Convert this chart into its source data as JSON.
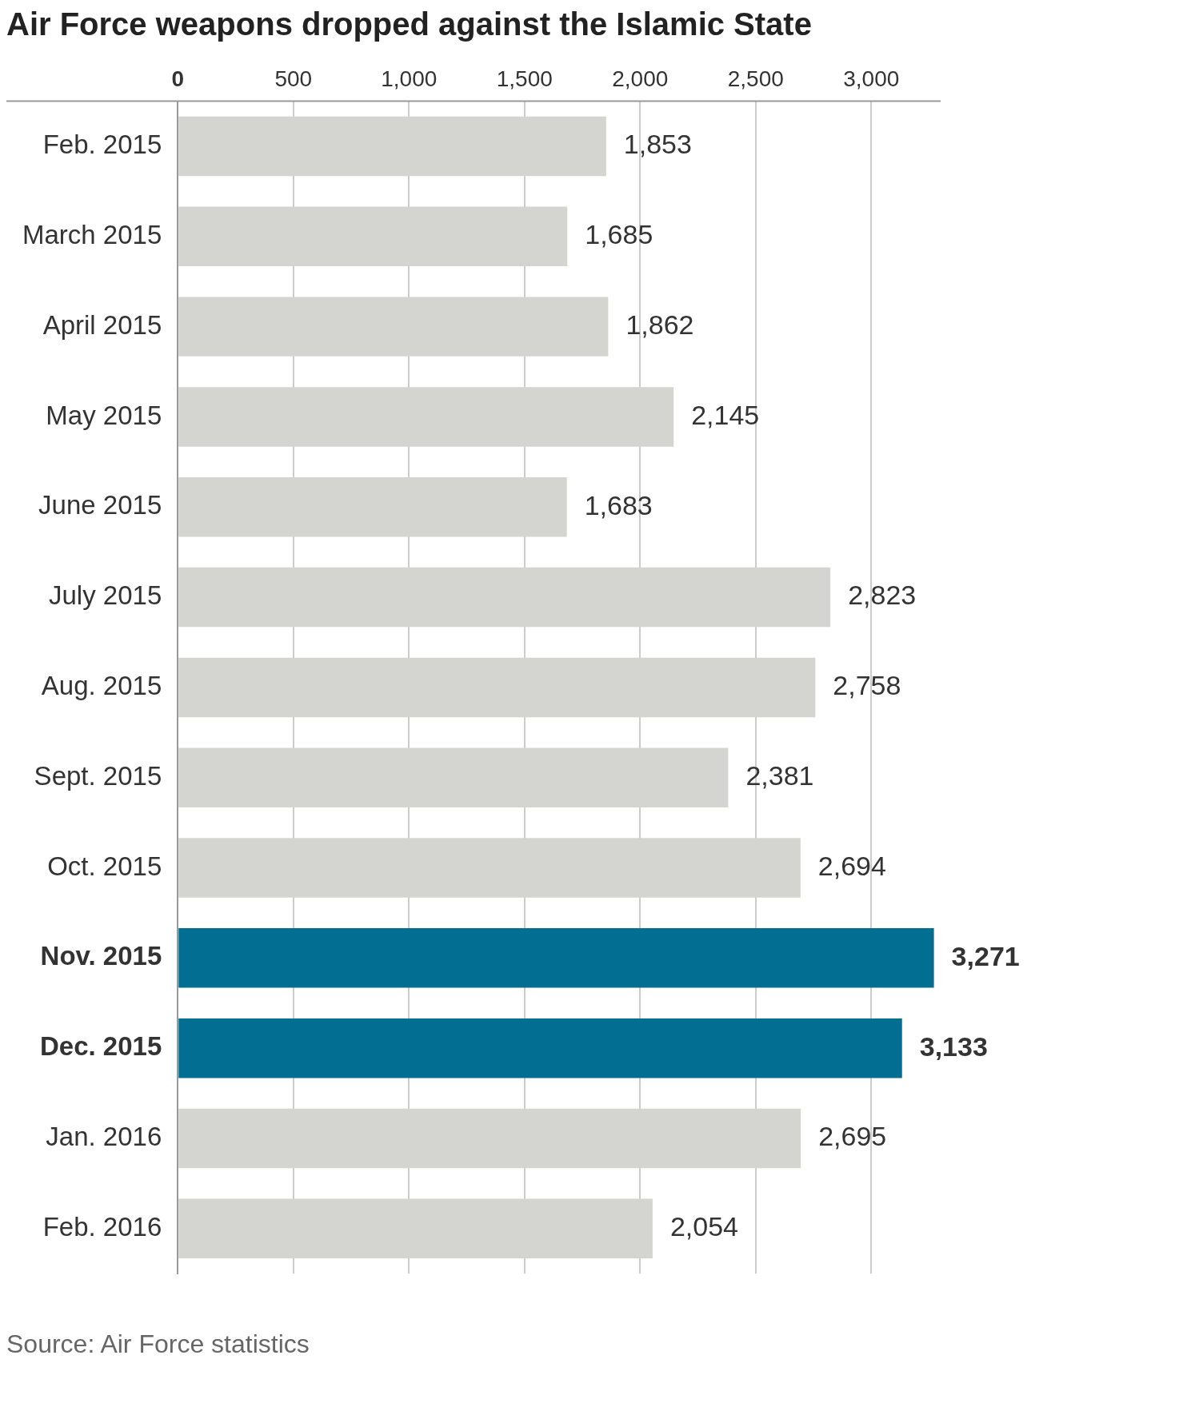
{
  "chart_data": {
    "type": "bar",
    "orientation": "horizontal",
    "title": "Air Force weapons dropped against the Islamic State",
    "categories": [
      "Feb. 2015",
      "March 2015",
      "April 2015",
      "May 2015",
      "June 2015",
      "July 2015",
      "Aug. 2015",
      "Sept. 2015",
      "Oct. 2015",
      "Nov. 2015",
      "Dec. 2015",
      "Jan. 2016",
      "Feb. 2016"
    ],
    "values": [
      1853,
      1685,
      1862,
      2145,
      1683,
      2823,
      2758,
      2381,
      2694,
      3271,
      3133,
      2695,
      2054
    ],
    "colors": [
      "#d4d4d0",
      "#d4d4d0",
      "#d4d4d0",
      "#d4d4d0",
      "#d4d4d0",
      "#d4d4d0",
      "#d4d4d0",
      "#d4d4d0",
      "#d4d4d0",
      "#026e92",
      "#026e92",
      "#d4d4d0",
      "#d4d4d0"
    ],
    "xlim": [
      0,
      3300
    ],
    "xticks": [
      0,
      500,
      {
        "value": 1000,
        "label": "1,000"
      },
      {
        "value": 1500,
        "label": "1,500"
      },
      {
        "value": 2000,
        "label": "2,000"
      },
      {
        "value": 2500,
        "label": "2,500"
      },
      {
        "value": 3000,
        "label": "3,000"
      }
    ],
    "grid": "x",
    "value_labels": [
      "1,853",
      "1,685",
      "1,862",
      "2,145",
      "1,683",
      "2,823",
      "2,758",
      "2,381",
      "2,694",
      "3,271",
      "3,133",
      "2,695",
      "2,054"
    ],
    "annotations": [
      "Source: Air Force statistics"
    ]
  }
}
